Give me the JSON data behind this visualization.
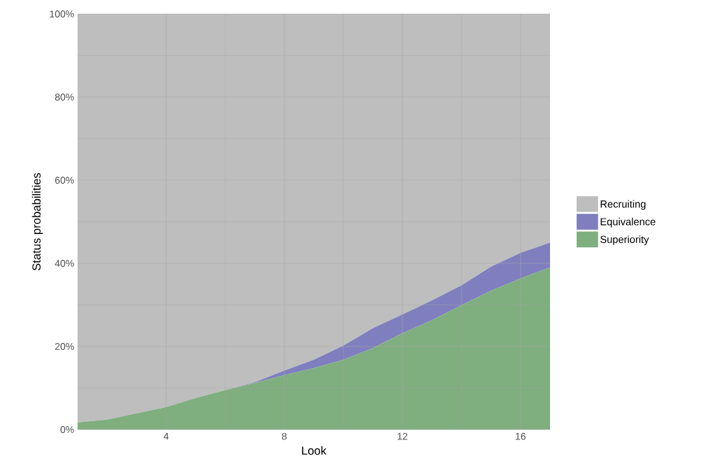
{
  "chart_data": {
    "type": "area",
    "stacked": true,
    "xlabel": "Look",
    "ylabel": "Status probabilities",
    "x": [
      1,
      2,
      3,
      4,
      5,
      6,
      7,
      8,
      9,
      10,
      11,
      12,
      13,
      14,
      15,
      16,
      17
    ],
    "xlim": [
      1,
      17
    ],
    "xticks": [
      4,
      8,
      12,
      16
    ],
    "ylim": [
      0,
      100
    ],
    "yticks": [
      {
        "value": 0,
        "label": "0%"
      },
      {
        "value": 20,
        "label": "20%"
      },
      {
        "value": 40,
        "label": "40%"
      },
      {
        "value": 60,
        "label": "60%"
      },
      {
        "value": 80,
        "label": "80%"
      },
      {
        "value": 100,
        "label": "100%"
      }
    ],
    "grid": true,
    "legend": "right",
    "series": [
      {
        "name": "Superiority",
        "color": "#7fae7f",
        "values": [
          1.7,
          2.4,
          3.9,
          5.4,
          7.6,
          9.5,
          11.2,
          13.1,
          14.8,
          16.8,
          19.6,
          23.2,
          26.3,
          29.9,
          33.4,
          36.4,
          39.0
        ]
      },
      {
        "name": "Equivalence",
        "color": "#7f7fbf",
        "values": [
          0,
          0,
          0,
          0,
          0,
          0,
          0.2,
          1.1,
          2.0,
          3.4,
          4.8,
          4.5,
          4.8,
          4.8,
          5.8,
          6.1,
          6.0
        ]
      },
      {
        "name": "Recruiting",
        "color": "#bebebe",
        "values": [
          98.3,
          97.6,
          96.1,
          94.6,
          92.4,
          90.5,
          88.6,
          85.8,
          83.2,
          79.8,
          75.6,
          72.3,
          68.9,
          65.3,
          60.8,
          57.5,
          55.0
        ]
      }
    ]
  }
}
